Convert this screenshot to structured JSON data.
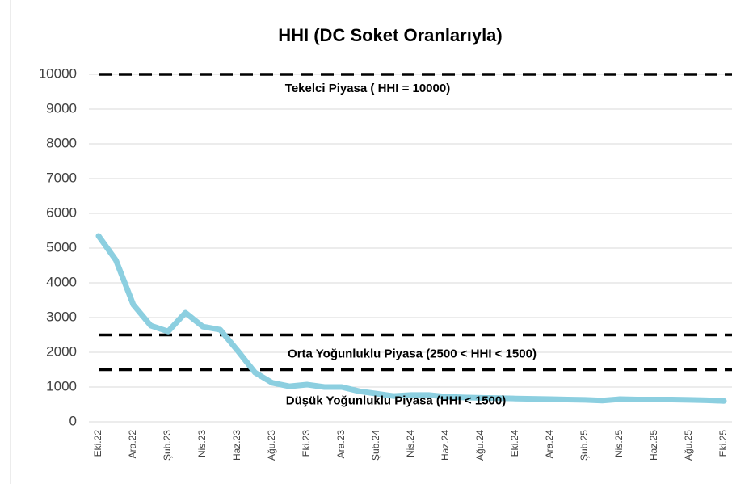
{
  "chart_data": {
    "type": "line",
    "title": "HHI (DC Soket Oranlarıyla)",
    "categories": [
      "Eki.22",
      null,
      "Ara.22",
      null,
      "Şub.23",
      null,
      "Nis.23",
      null,
      "Haz.23",
      null,
      "Ağu.23",
      null,
      "Eki.23",
      null,
      "Ara.23",
      null,
      "Şub.24",
      null,
      "Nis.24",
      null,
      "Haz.24",
      null,
      "Ağu.24",
      null,
      "Eki.24",
      null,
      "Ara.24",
      null,
      "Şub.25",
      null,
      "Nis.25",
      null,
      "Haz.25",
      null,
      "Ağu.25",
      null,
      "Eki.25"
    ],
    "series": [
      {
        "name": "HHI",
        "color": "#8ccfe0",
        "values": [
          5350,
          4650,
          3370,
          2770,
          2600,
          3140,
          2740,
          2650,
          2050,
          1420,
          1120,
          1020,
          1070,
          1000,
          1000,
          880,
          810,
          740,
          770,
          770,
          720,
          700,
          690,
          680,
          670,
          660,
          650,
          640,
          630,
          610,
          650,
          640,
          640,
          640,
          630,
          620,
          600
        ]
      }
    ],
    "reference_lines": [
      {
        "value": 10000,
        "label": "Tekelci Piyasa ( HHI = 10000)",
        "color": "#000000"
      },
      {
        "value": 2500,
        "label": "Orta Yoğunluklu Piyasa (2500 < HHI < 1500)",
        "color": "#000000"
      },
      {
        "value": 1500,
        "label": "Düşük Yoğunluklu Piyasa (HHI < 1500)",
        "color": "#000000"
      }
    ],
    "ylim": [
      0,
      10000
    ],
    "yticks": [
      0,
      1000,
      2000,
      3000,
      4000,
      5000,
      6000,
      7000,
      8000,
      9000,
      10000
    ],
    "grid": true
  }
}
